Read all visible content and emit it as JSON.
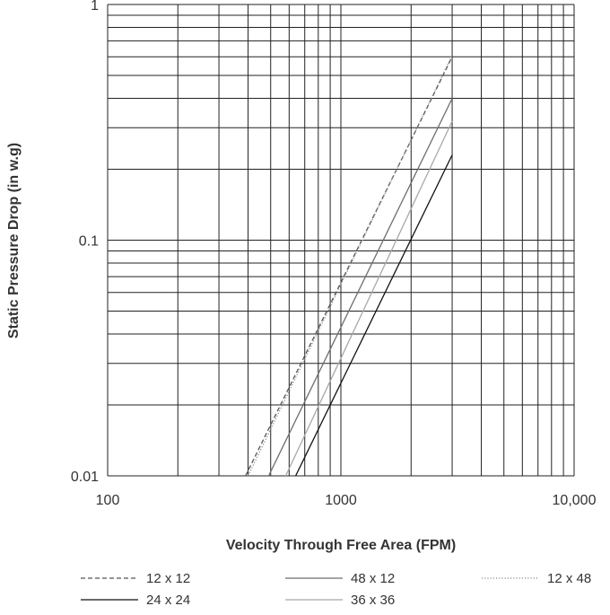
{
  "chart_data": {
    "type": "line",
    "title": "",
    "xlabel": "Velocity Through Free Area (FPM)",
    "ylabel": "Static Pressure Drop (in w.g)",
    "xscale": "log",
    "yscale": "log",
    "xlim": [
      100,
      10000
    ],
    "ylim": [
      0.01,
      1
    ],
    "x_ticks": [
      {
        "value": 100,
        "label": "100"
      },
      {
        "value": 1000,
        "label": "1000"
      },
      {
        "value": 10000,
        "label": "10,000"
      }
    ],
    "y_ticks": [
      {
        "value": 1,
        "label": "1"
      },
      {
        "value": 0.1,
        "label": "0.1"
      },
      {
        "value": 0.01,
        "label": "0.01"
      }
    ],
    "grid": true,
    "legend_position": "bottom",
    "series": [
      {
        "name": "12 x 12",
        "x": [
          390,
          3000
        ],
        "y": [
          0.01,
          0.6
        ],
        "color": "#555555",
        "style": "dashed"
      },
      {
        "name": "48 x 12",
        "x": [
          490,
          3000
        ],
        "y": [
          0.01,
          0.4
        ],
        "color": "#6e6e6e",
        "style": "solid"
      },
      {
        "name": "12 x 48",
        "x": [
          400,
          3000
        ],
        "y": [
          0.01,
          0.61
        ],
        "color": "#8a8a8a",
        "style": "dotted"
      },
      {
        "name": "24 x 24",
        "x": [
          640,
          3000
        ],
        "y": [
          0.01,
          0.23
        ],
        "color": "#111111",
        "style": "solid"
      },
      {
        "name": "36 x 36",
        "x": [
          580,
          3000
        ],
        "y": [
          0.01,
          0.32
        ],
        "color": "#a8a8a8",
        "style": "solid"
      }
    ]
  }
}
